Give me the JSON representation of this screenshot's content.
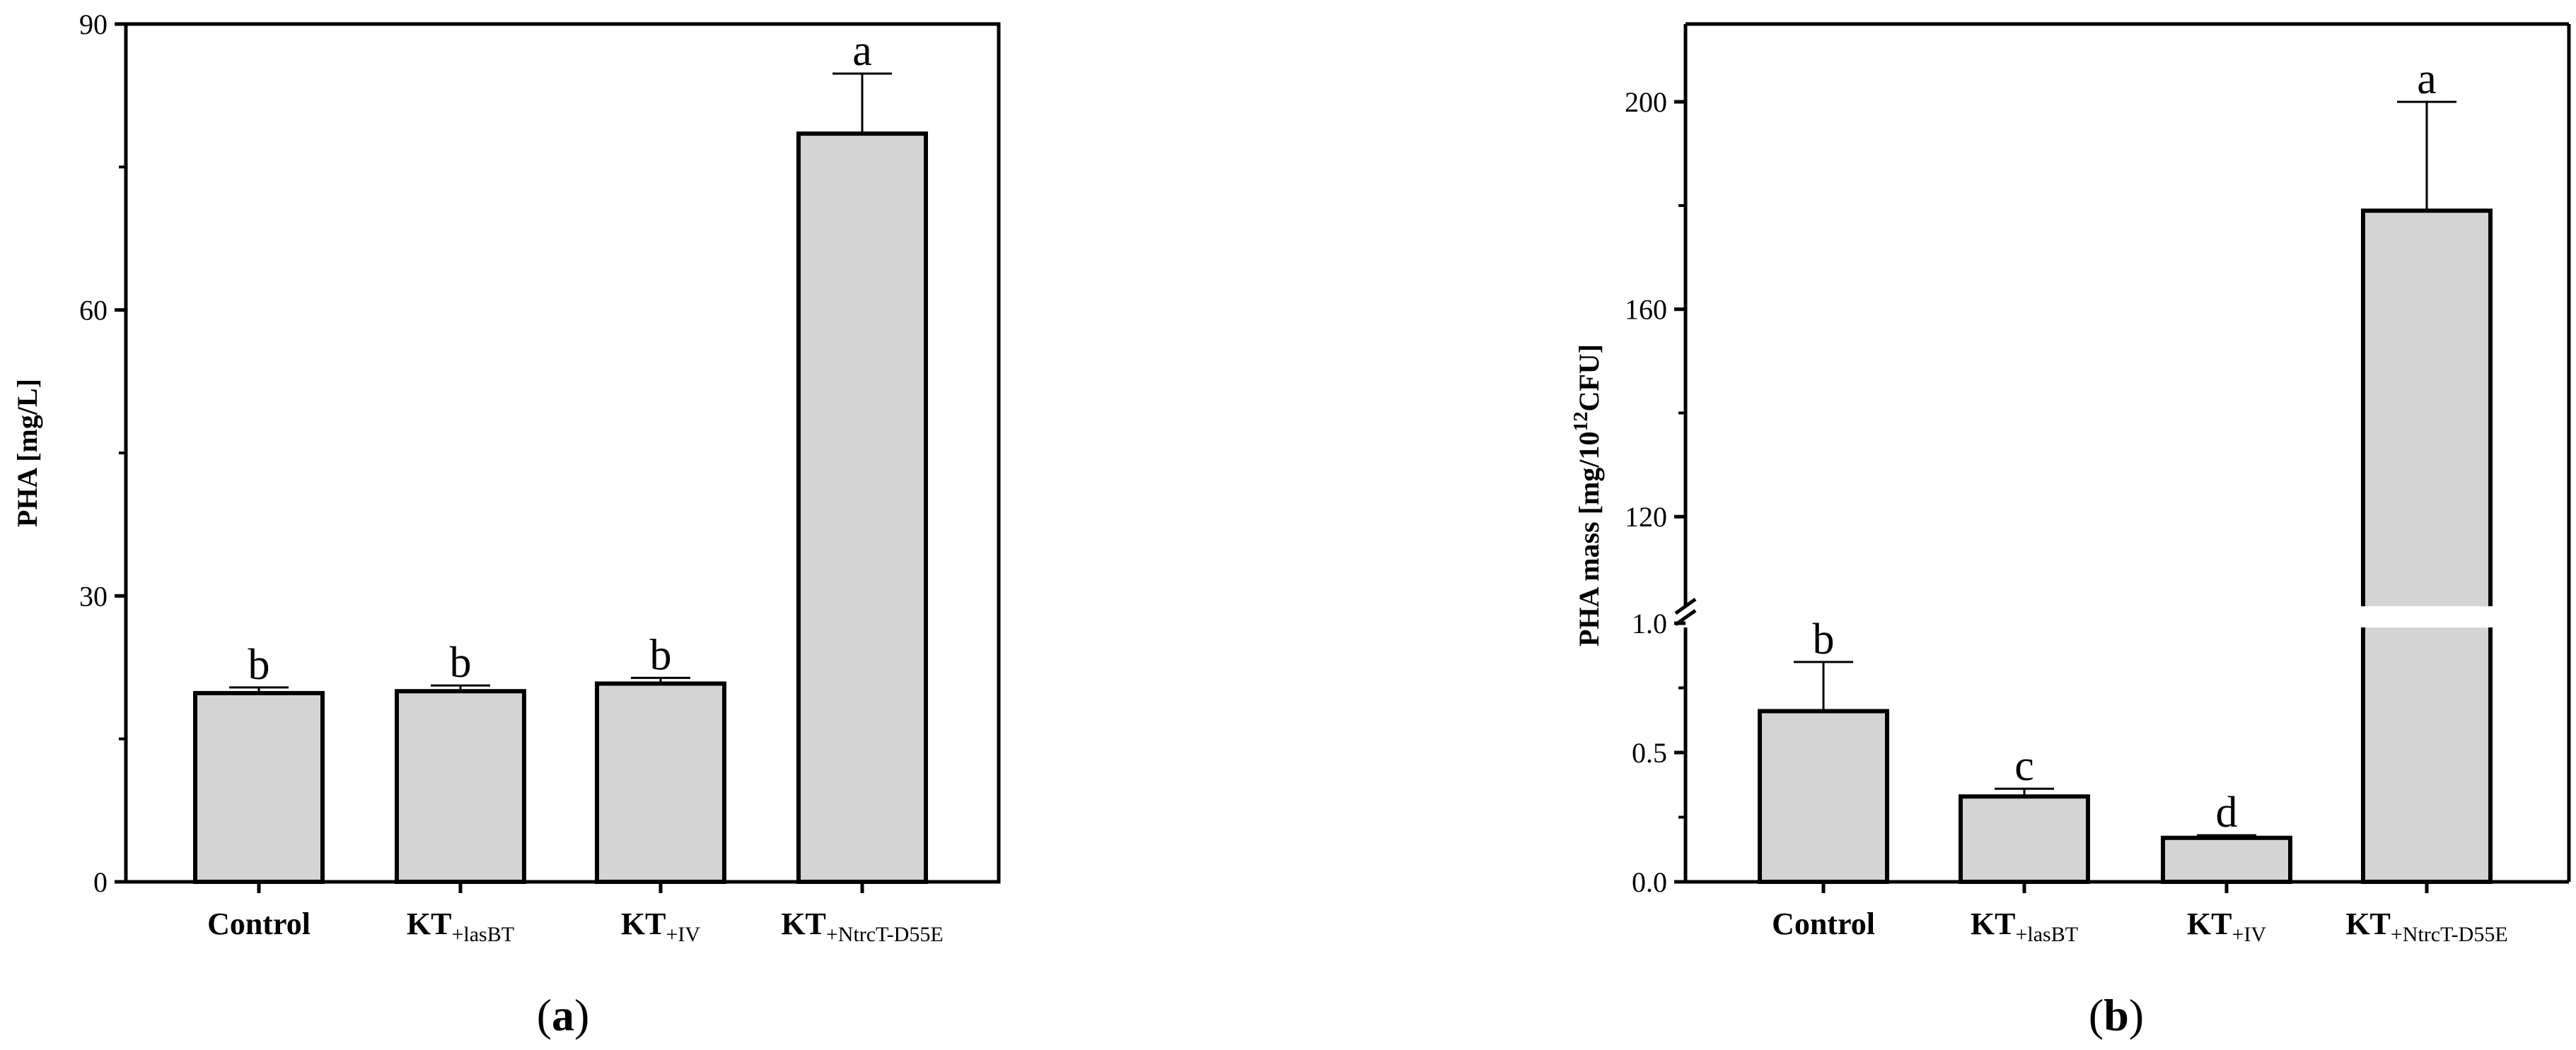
{
  "chart_data": [
    {
      "type": "bar",
      "panel_label": "a",
      "ylabel": "PHA [mg/L]",
      "ylim": [
        0,
        90
      ],
      "yticks": [
        0,
        30,
        60,
        90
      ],
      "categories": [
        {
          "main": "KT",
          "sub": "",
          "full": "Control"
        },
        {
          "main": "KT",
          "sub": "+lasBT",
          "full": "KT+lasBT"
        },
        {
          "main": "KT",
          "sub": "+IV",
          "full": "KT+IV"
        },
        {
          "main": "KT",
          "sub": "+NtrcT-D55E",
          "full": "KT+NtrcT-D55E"
        }
      ],
      "values": [
        19.8,
        20.0,
        20.8,
        78.5
      ],
      "errors": [
        0.6,
        0.6,
        0.6,
        6.3
      ],
      "significance": [
        "b",
        "b",
        "b",
        "a"
      ],
      "grid": false
    },
    {
      "type": "bar",
      "panel_label": "b",
      "ylabel": "PHA mass [mg/10",
      "ylabel_sup": "12",
      "ylabel_end": "CFU]",
      "ylim": [
        0,
        215
      ],
      "axis_break": {
        "lower": [
          0,
          1.0
        ],
        "upper": [
          100,
          215
        ]
      },
      "yticks_lower": [
        "0.0",
        "0.5",
        "1.0"
      ],
      "yticks_upper": [
        "120",
        "160",
        "200"
      ],
      "categories": [
        {
          "main": "Control",
          "sub": "",
          "full": "Control"
        },
        {
          "main": "KT",
          "sub": "+lasBT",
          "full": "KT+lasBT"
        },
        {
          "main": "KT",
          "sub": "+IV",
          "full": "KT+IV"
        },
        {
          "main": "KT",
          "sub": "+NtrcT-D55E",
          "full": "KT+NtrcT-D55E"
        }
      ],
      "values": [
        0.66,
        0.33,
        0.17,
        179
      ],
      "errors": [
        0.19,
        0.03,
        0.01,
        21
      ],
      "significance": [
        "b",
        "c",
        "d",
        "a"
      ],
      "grid": false
    }
  ]
}
